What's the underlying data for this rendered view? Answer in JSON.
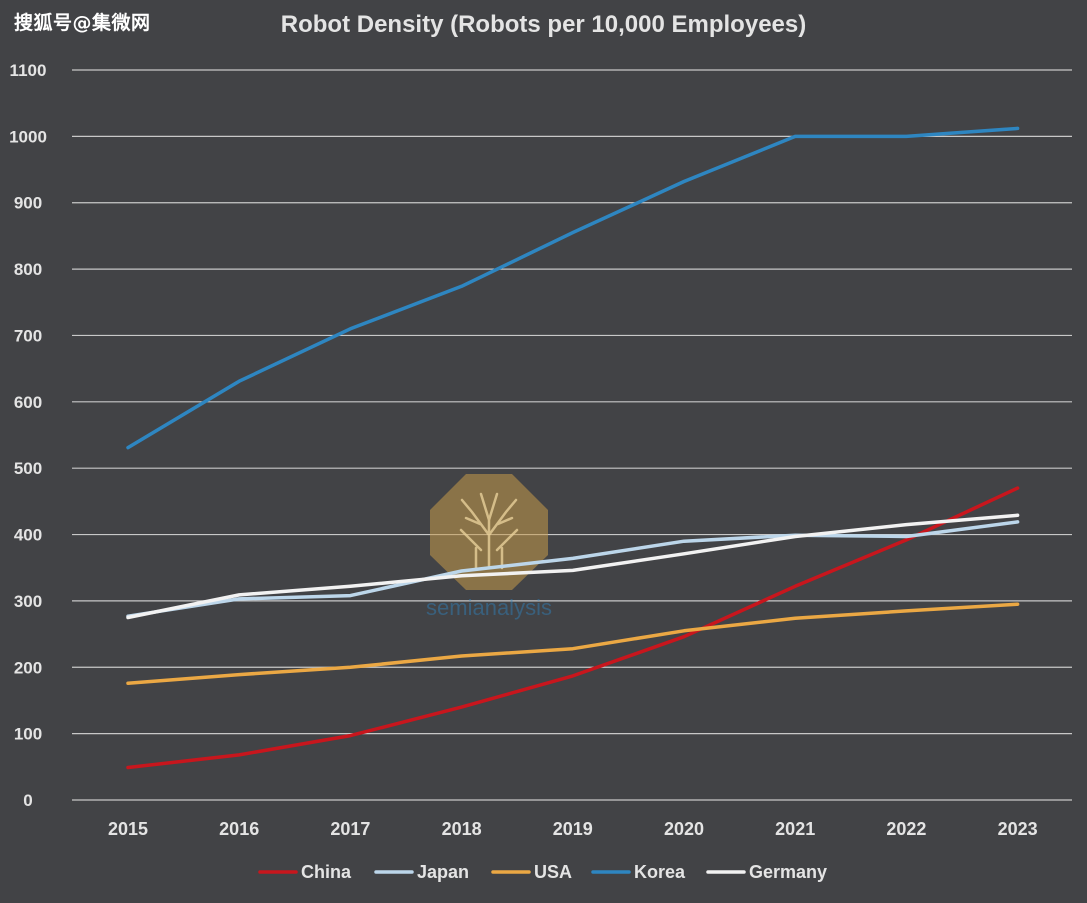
{
  "watermark": {
    "text": "搜狐号@集微网"
  },
  "logo": {
    "text": "semianalysis"
  },
  "colors": {
    "background": "#424346",
    "grid": "#c8c8c8",
    "text": "#e4e4e4",
    "China": "#c8161d",
    "Japan": "#bcd6ea",
    "USA": "#eba844",
    "Korea": "#2e86c1",
    "Germany": "#f2f2f2"
  },
  "chart_data": {
    "type": "line",
    "title": "Robot Density (Robots per 10,000 Employees)",
    "xlabel": "",
    "ylabel": "",
    "x": [
      "2015",
      "2016",
      "2017",
      "2018",
      "2019",
      "2020",
      "2021",
      "2022",
      "2023"
    ],
    "ylim": [
      0,
      1100
    ],
    "yticks": [
      0,
      100,
      200,
      300,
      400,
      500,
      600,
      700,
      800,
      900,
      1000,
      1100
    ],
    "grid": true,
    "legend_position": "bottom",
    "series": [
      {
        "name": "China",
        "values": [
          49,
          68,
          97,
          140,
          187,
          246,
          322,
          392,
          470
        ]
      },
      {
        "name": "Japan",
        "values": [
          277,
          303,
          308,
          345,
          364,
          390,
          399,
          397,
          419
        ]
      },
      {
        "name": "USA",
        "values": [
          176,
          189,
          200,
          217,
          228,
          255,
          274,
          285,
          295
        ]
      },
      {
        "name": "Korea",
        "values": [
          531,
          631,
          710,
          774,
          855,
          932,
          1000,
          1000,
          1012
        ]
      },
      {
        "name": "Germany",
        "values": [
          275,
          309,
          322,
          338,
          346,
          371,
          397,
          415,
          429
        ]
      }
    ]
  }
}
